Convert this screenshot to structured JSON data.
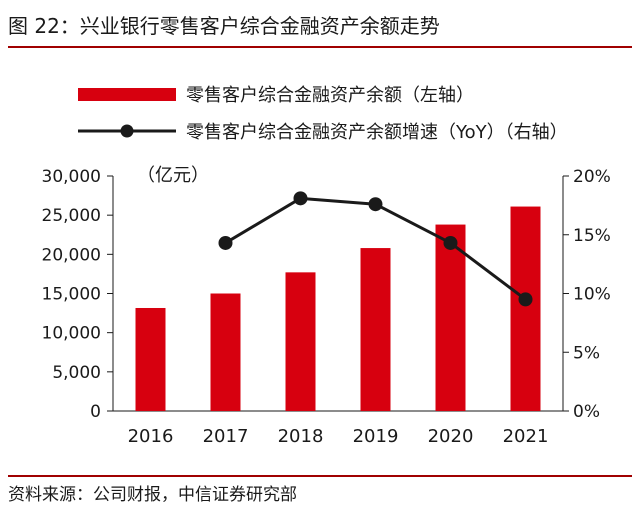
{
  "figure": {
    "title": "图 22：兴业银行零售客户综合金融资产余额走势",
    "source": "资料来源：公司财报，中信证券研究部"
  },
  "chart_data": {
    "type": "bar+line",
    "categories": [
      "2016",
      "2017",
      "2018",
      "2019",
      "2020",
      "2021"
    ],
    "series": [
      {
        "name": "零售客户综合金融资产余额（左轴）",
        "type": "bar",
        "axis": "left",
        "values": [
          13150,
          15000,
          17700,
          20800,
          23800,
          26100
        ]
      },
      {
        "name": "零售客户综合金融资产余额增速（YoY）（右轴）",
        "type": "line",
        "axis": "right",
        "values": [
          null,
          14.3,
          18.1,
          17.6,
          14.3,
          9.5
        ]
      }
    ],
    "left_axis": {
      "unit_label": "（亿元）",
      "range": [
        0,
        30000
      ],
      "ticks": [
        0,
        5000,
        10000,
        15000,
        20000,
        25000,
        30000
      ],
      "tick_labels": [
        "0",
        "5,000",
        "10,000",
        "15,000",
        "20,000",
        "25,000",
        "30,000"
      ]
    },
    "right_axis": {
      "range": [
        0,
        20
      ],
      "ticks": [
        0,
        5,
        10,
        15,
        20
      ],
      "tick_labels": [
        "0%",
        "5%",
        "10%",
        "15%",
        "20%"
      ]
    },
    "grid": false,
    "legend_position": "top",
    "colors": {
      "bar": "#d7000f",
      "line": "#1a1a1a",
      "marker": "#1a1a1a"
    }
  }
}
